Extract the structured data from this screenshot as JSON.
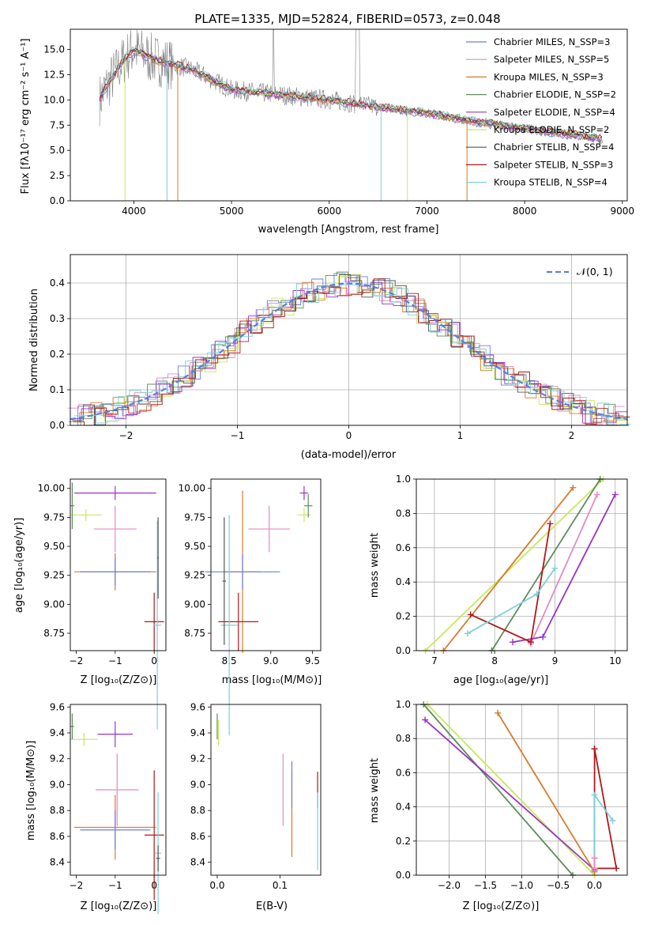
{
  "colors": {
    "chabrier_miles": "#6e7fd8",
    "salpeter_miles": "#e38bc2",
    "kroupa_miles": "#d97a2b",
    "chabrier_elodie": "#5e8c5e",
    "salpeter_elodie": "#9b32c4",
    "kroupa_elodie": "#c8e85a",
    "chabrier_stelib": "#555555",
    "salpeter_stelib": "#b01818",
    "kroupa_stelib": "#7fd0d8",
    "data": "#808080",
    "normal": "#5b7fe0"
  },
  "chart_data": [
    {
      "id": "spectrum",
      "type": "line",
      "title": "PLATE=1335, MJD=52824, FIBERID=0573, z=0.048",
      "xlabel": "wavelength [Angstrom, rest frame]",
      "ylabel": "Flux [fλ10⁻¹⁷ erg cm⁻² s⁻¹ A⁻¹]",
      "xlim": [
        3350,
        9050
      ],
      "ylim": [
        0,
        17
      ],
      "xticks": [
        "4000",
        "5000",
        "6000",
        "7000",
        "8000",
        "9000"
      ],
      "yticks": [
        "0.0",
        "2.5",
        "5.0",
        "7.5",
        "10.0",
        "12.5",
        "15.0"
      ],
      "series_x": [
        3650,
        3700,
        3800,
        3900,
        4000,
        4100,
        4200,
        4400,
        4600,
        4800,
        5000,
        5500,
        6000,
        6500,
        7000,
        7400,
        7800,
        8200,
        8600,
        8800
      ],
      "series_y": [
        10.0,
        11.0,
        12.5,
        14.0,
        15.0,
        14.5,
        14.0,
        13.5,
        13.0,
        12.0,
        11.0,
        10.5,
        10.0,
        9.3,
        8.7,
        8.0,
        7.4,
        6.9,
        6.4,
        6.1
      ],
      "legend": [
        "Chabrier MILES, N_SSP=3",
        "Salpeter MILES, N_SSP=5",
        "Kroupa MILES, N_SSP=3",
        "Chabrier ELODIE, N_SSP=2",
        "Salpeter ELODIE, N_SSP=4",
        "Kroupa ELODIE, N_SSP=2",
        "Chabrier STELIB, N_SSP=4",
        "Salpeter STELIB, N_SSP=3",
        "Kroupa STELIB, N_SSP=4"
      ],
      "legend_placement": "upper right"
    },
    {
      "id": "residuals",
      "type": "line",
      "xlabel": "(data-model)/error",
      "ylabel": "Normed distribution",
      "xlim": [
        -2.5,
        2.5
      ],
      "ylim": [
        0,
        0.48
      ],
      "xticks": [
        "−2",
        "−1",
        "0",
        "1",
        "2"
      ],
      "yticks": [
        "0.0",
        "0.1",
        "0.2",
        "0.3",
        "0.4"
      ],
      "legend": [
        "𝒩(0, 1)"
      ],
      "legend_placement": "upper right",
      "grid": true
    },
    {
      "id": "z_age",
      "type": "scatter",
      "xlabel": "Z [log₁₀(Z/Z⊙)]",
      "ylabel": "age  [log₁₀(age/yr)]",
      "xlim": [
        -2.15,
        0.3
      ],
      "ylim": [
        8.6,
        10.08
      ],
      "xticks": [
        "−2",
        "−1",
        "0"
      ],
      "yticks": [
        "8.75",
        "9.00",
        "9.25",
        "9.50",
        "9.75",
        "10.00"
      ],
      "points": [
        {
          "s": "salpeter_miles",
          "x": -1.0,
          "y": 9.65,
          "ex": 0.55,
          "ey": 0.2
        },
        {
          "s": "kroupa_miles",
          "x": -1.0,
          "y": 9.28,
          "ex": 1.05,
          "ey": 0.16
        },
        {
          "s": "chabrier_miles",
          "x": -1.0,
          "y": 9.28,
          "ex": 0.9,
          "ey": 0.12
        },
        {
          "s": "salpeter_elodie",
          "x": -1.0,
          "y": 9.96,
          "ex": 1.05,
          "ey": 0.06
        },
        {
          "s": "kroupa_elodie",
          "x": -1.75,
          "y": 9.77,
          "ex": 0.4,
          "ey": 0.05
        },
        {
          "s": "chabrier_elodie",
          "x": -2.1,
          "y": 9.85,
          "ex": 0.05,
          "ey": 0.2
        },
        {
          "s": "salpeter_stelib",
          "x": 0.0,
          "y": 8.85,
          "ex": 0.25,
          "ey": 0.25
        },
        {
          "s": "kroupa_stelib",
          "x": 0.08,
          "y": 8.82,
          "ex": 0.1,
          "ey": 0.9
        },
        {
          "s": "chabrier_stelib",
          "x": 0.1,
          "y": 9.4,
          "ex": 0.02,
          "ey": 0.35
        }
      ]
    },
    {
      "id": "mass_age",
      "type": "scatter",
      "xlabel": "mass [log₁₀(M/M⊙)]",
      "ylabel": "",
      "xlim": [
        8.28,
        9.6
      ],
      "ylim": [
        8.6,
        10.08
      ],
      "xticks": [
        "8.5",
        "9.0",
        "9.5"
      ],
      "yticks": [
        "8.75",
        "9.00",
        "9.25",
        "9.50",
        "9.75",
        "10.00"
      ],
      "points": [
        {
          "s": "salpeter_miles",
          "x": 8.98,
          "y": 9.65,
          "ex": 0.25,
          "ey": 0.2
        },
        {
          "s": "kroupa_miles",
          "x": 8.66,
          "y": 9.28,
          "ex": 0.22,
          "ey": 0.7
        },
        {
          "s": "chabrier_miles",
          "x": 8.66,
          "y": 9.28,
          "ex": 0.45,
          "ey": 0.15
        },
        {
          "s": "salpeter_elodie",
          "x": 9.4,
          "y": 9.96,
          "ex": 0.05,
          "ey": 0.06
        },
        {
          "s": "kroupa_elodie",
          "x": 9.4,
          "y": 9.77,
          "ex": 0.08,
          "ey": 0.06
        },
        {
          "s": "chabrier_elodie",
          "x": 9.45,
          "y": 9.85,
          "ex": 0.05,
          "ey": 0.1
        },
        {
          "s": "salpeter_stelib",
          "x": 8.61,
          "y": 8.85,
          "ex": 0.24,
          "ey": 0.25
        },
        {
          "s": "kroupa_stelib",
          "x": 8.5,
          "y": 8.82,
          "ex": 0.1,
          "ey": 0.95
        },
        {
          "s": "chabrier_stelib",
          "x": 8.44,
          "y": 9.2,
          "ex": 0.02,
          "ey": 0.55
        }
      ]
    },
    {
      "id": "age_weight",
      "type": "line",
      "xlabel": "age  [log₁₀(age/yr)]",
      "ylabel": "mass weight",
      "xlim": [
        6.7,
        10.2
      ],
      "ylim": [
        0,
        1
      ],
      "xticks": [
        "7",
        "8",
        "9",
        "10"
      ],
      "yticks": [
        "0.0",
        "0.2",
        "0.4",
        "0.6",
        "0.8",
        "1.0"
      ],
      "grid": true,
      "series": [
        {
          "s": "kroupa_elodie",
          "x": [
            6.85,
            9.8
          ],
          "y": [
            0.0,
            1.0
          ]
        },
        {
          "s": "chabrier_elodie",
          "x": [
            7.95,
            9.75
          ],
          "y": [
            0.0,
            1.0
          ]
        },
        {
          "s": "kroupa_miles",
          "x": [
            7.15,
            9.3
          ],
          "y": [
            0.0,
            0.95
          ]
        },
        {
          "s": "salpeter_miles",
          "x": [
            8.6,
            9.7
          ],
          "y": [
            0.04,
            0.91
          ]
        },
        {
          "s": "salpeter_elodie",
          "x": [
            8.3,
            8.8,
            10.0
          ],
          "y": [
            0.05,
            0.08,
            0.91
          ]
        },
        {
          "s": "salpeter_stelib",
          "x": [
            7.6,
            8.6,
            8.92
          ],
          "y": [
            0.21,
            0.05,
            0.74
          ]
        },
        {
          "s": "kroupa_stelib",
          "x": [
            7.55,
            8.7,
            9.0
          ],
          "y": [
            0.1,
            0.33,
            0.48
          ]
        }
      ]
    },
    {
      "id": "z_mass",
      "type": "scatter",
      "xlabel": "Z [log₁₀(Z/Z⊙)]",
      "ylabel": "mass [log₁₀(M/M⊙)]",
      "xlim": [
        -2.15,
        0.3
      ],
      "ylim": [
        8.3,
        9.62
      ],
      "xticks": [
        "−2",
        "−1",
        "0"
      ],
      "yticks": [
        "8.4",
        "8.6",
        "8.8",
        "9.0",
        "9.2",
        "9.4",
        "9.6"
      ],
      "points": [
        {
          "s": "salpeter_miles",
          "x": -0.95,
          "y": 8.96,
          "ex": 0.55,
          "ey": 0.28
        },
        {
          "s": "kroupa_miles",
          "x": -1.0,
          "y": 8.67,
          "ex": 1.05,
          "ey": 0.25
        },
        {
          "s": "chabrier_miles",
          "x": -1.0,
          "y": 8.65,
          "ex": 0.9,
          "ey": 0.15
        },
        {
          "s": "salpeter_elodie",
          "x": -1.0,
          "y": 9.39,
          "ex": 0.45,
          "ey": 0.1
        },
        {
          "s": "kroupa_elodie",
          "x": -1.8,
          "y": 9.35,
          "ex": 0.35,
          "ey": 0.05
        },
        {
          "s": "chabrier_elodie",
          "x": -2.1,
          "y": 9.45,
          "ex": 0.05,
          "ey": 0.1
        },
        {
          "s": "salpeter_stelib",
          "x": 0.0,
          "y": 8.61,
          "ex": 0.25,
          "ey": 0.5
        },
        {
          "s": "kroupa_stelib",
          "x": 0.1,
          "y": 8.47,
          "ex": 0.08,
          "ey": 0.47
        },
        {
          "s": "chabrier_stelib",
          "x": 0.1,
          "y": 8.43,
          "ex": 0.05,
          "ey": 0.1
        }
      ]
    },
    {
      "id": "ebv_mass",
      "type": "scatter",
      "xlabel": "E(B-V)",
      "ylabel": "",
      "xlim": [
        -0.01,
        0.165
      ],
      "ylim": [
        8.3,
        9.62
      ],
      "xticks": [
        "0.0",
        "0.1"
      ],
      "yticks": [
        "8.4",
        "8.6",
        "8.8",
        "9.0",
        "9.2",
        "9.4",
        "9.6"
      ],
      "points": [
        {
          "s": "salpeter_miles",
          "x": 0.105,
          "y": 8.96,
          "ex": 0.0,
          "ey": 0.28
        },
        {
          "s": "kroupa_miles",
          "x": 0.119,
          "y": 8.77,
          "ex": 0.0,
          "ey": 0.33
        },
        {
          "s": "chabrier_miles",
          "x": 0.119,
          "y": 9.0,
          "ex": 0.0,
          "ey": 0.18
        },
        {
          "s": "kroupa_elodie",
          "x": 0.002,
          "y": 9.4,
          "ex": 0.0,
          "ey": 0.1
        },
        {
          "s": "chabrier_elodie",
          "x": 0.0,
          "y": 9.45,
          "ex": 0.0,
          "ey": 0.1
        },
        {
          "s": "salpeter_stelib",
          "x": 0.16,
          "y": 8.96,
          "ex": 0.0,
          "ey": 0.14
        },
        {
          "s": "kroupa_stelib",
          "x": 0.16,
          "y": 8.64,
          "ex": 0.0,
          "ey": 0.3
        }
      ]
    },
    {
      "id": "z_weight",
      "type": "line",
      "xlabel": "Z [log₁₀(Z/Z⊙)]",
      "ylabel": "mass weight",
      "xlim": [
        -2.45,
        0.45
      ],
      "ylim": [
        0,
        1
      ],
      "xticks": [
        "−2.0",
        "−1.5",
        "−1.0",
        "−0.5",
        "0.0"
      ],
      "yticks": [
        "0.0",
        "0.2",
        "0.4",
        "0.6",
        "0.8",
        "1.0"
      ],
      "grid": true,
      "series": [
        {
          "s": "kroupa_elodie",
          "x": [
            -2.3,
            0.0
          ],
          "y": [
            1.0,
            0.0
          ]
        },
        {
          "s": "chabrier_elodie",
          "x": [
            -2.35,
            -0.3
          ],
          "y": [
            1.0,
            0.0
          ]
        },
        {
          "s": "salpeter_elodie",
          "x": [
            -2.33,
            0.0
          ],
          "y": [
            0.91,
            0.03
          ]
        },
        {
          "s": "kroupa_miles",
          "x": [
            -1.33,
            0.0
          ],
          "y": [
            0.95,
            0.02
          ]
        },
        {
          "s": "salpeter_stelib",
          "x": [
            0.0,
            0.0,
            0.3,
            0.0
          ],
          "y": [
            0.74,
            0.04,
            0.04,
            0.74
          ]
        },
        {
          "s": "kroupa_stelib",
          "x": [
            0.0,
            0.0,
            0.0,
            0.25
          ],
          "y": [
            0.1,
            0.1,
            0.47,
            0.32
          ]
        },
        {
          "s": "salpeter_miles",
          "x": [
            0.0,
            0.0
          ],
          "y": [
            0.04,
            0.1
          ]
        }
      ]
    }
  ]
}
